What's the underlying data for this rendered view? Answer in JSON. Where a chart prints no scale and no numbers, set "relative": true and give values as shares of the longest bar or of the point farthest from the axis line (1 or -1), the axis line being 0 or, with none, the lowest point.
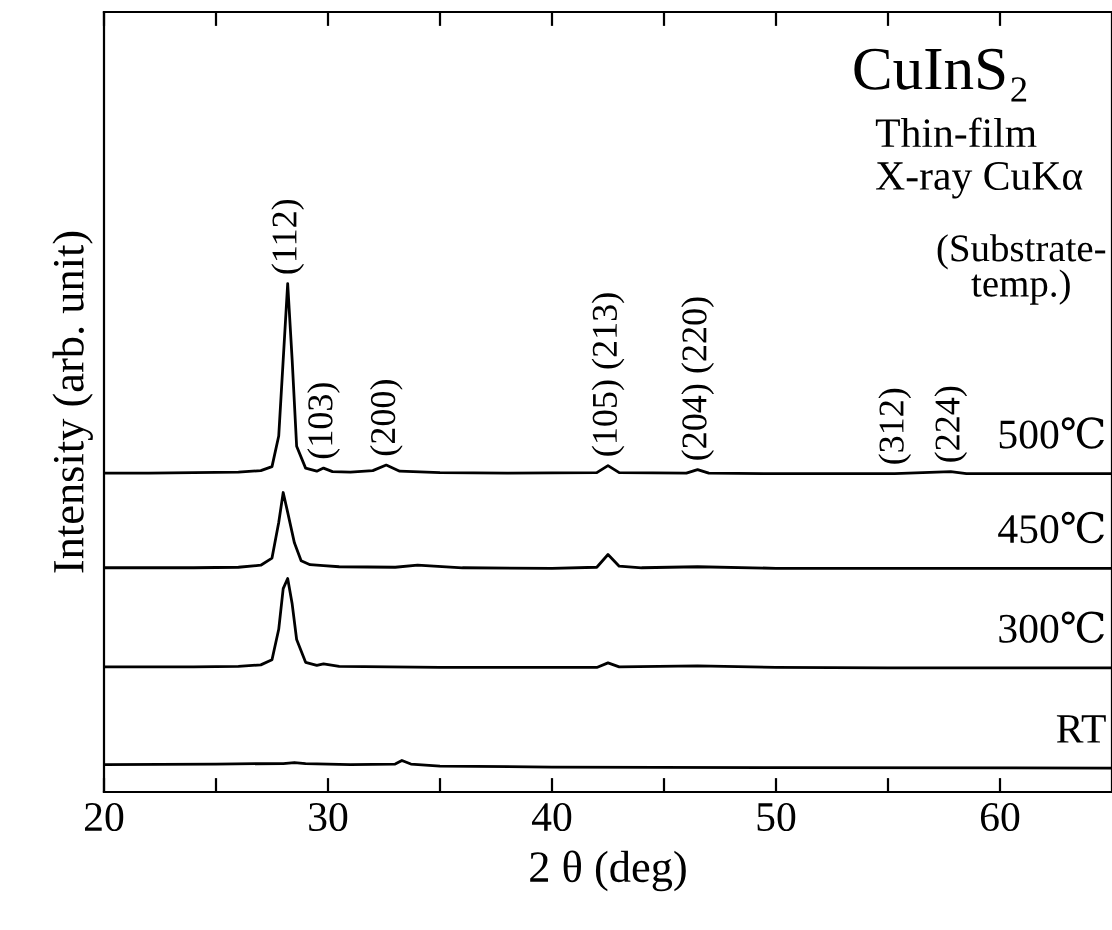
{
  "chart_data": {
    "type": "line",
    "relative": true,
    "xlabel": "2 θ (deg)",
    "ylabel": "Intensity (arb. unit)",
    "xlim": [
      20,
      65
    ],
    "xticks": [
      20,
      {
        "value": 25,
        "label": null
      },
      30,
      {
        "value": 35,
        "label": null
      },
      40,
      {
        "value": 45,
        "label": null
      },
      50,
      {
        "value": 55,
        "label": null
      },
      60
    ],
    "tick_labels": "x",
    "grid": false,
    "legend": false,
    "marker": "none",
    "line_style": "solid",
    "series": [
      {
        "name": "500℃",
        "color": "#000000",
        "x": [
          20,
          22,
          24,
          26,
          27,
          27.5,
          27.8,
          28.0,
          28.2,
          28.4,
          28.6,
          29,
          29.5,
          29.8,
          30.2,
          31,
          32.0,
          32.6,
          33.2,
          35,
          38,
          42,
          42.5,
          43,
          46,
          46.5,
          47,
          50,
          55.3,
          57.8,
          58.5,
          62,
          65
        ],
        "values": [
          0.627,
          0.627,
          0.628,
          0.629,
          0.632,
          0.64,
          0.7,
          0.85,
          1.0,
          0.85,
          0.68,
          0.637,
          0.631,
          0.637,
          0.63,
          0.629,
          0.632,
          0.643,
          0.631,
          0.628,
          0.627,
          0.628,
          0.642,
          0.628,
          0.627,
          0.634,
          0.627,
          0.626,
          0.626,
          0.63,
          0.626,
          0.626,
          0.626
        ]
      },
      {
        "name": "450℃",
        "color": "#000000",
        "x": [
          20,
          24,
          26,
          27,
          27.5,
          27.8,
          28.0,
          28.2,
          28.5,
          28.8,
          29.2,
          29.8,
          30.5,
          33,
          34,
          36,
          40,
          42,
          42.5,
          43,
          44,
          46.5,
          50,
          55,
          62,
          65
        ],
        "values": [
          0.441,
          0.441,
          0.442,
          0.446,
          0.46,
          0.53,
          0.589,
          0.55,
          0.49,
          0.455,
          0.447,
          0.445,
          0.443,
          0.442,
          0.446,
          0.441,
          0.44,
          0.442,
          0.467,
          0.444,
          0.441,
          0.443,
          0.44,
          0.44,
          0.44,
          0.44
        ]
      },
      {
        "name": "300℃",
        "color": "#000000",
        "x": [
          20,
          24,
          26,
          27,
          27.5,
          27.8,
          28.0,
          28.2,
          28.4,
          28.6,
          29,
          29.5,
          29.8,
          30.5,
          35,
          42,
          42.5,
          43,
          46.5,
          50,
          55,
          62,
          65
        ],
        "values": [
          0.246,
          0.246,
          0.247,
          0.25,
          0.26,
          0.32,
          0.4,
          0.42,
          0.37,
          0.3,
          0.255,
          0.249,
          0.252,
          0.247,
          0.245,
          0.245,
          0.254,
          0.246,
          0.248,
          0.245,
          0.244,
          0.244,
          0.244
        ]
      },
      {
        "name": "RT",
        "color": "#000000",
        "x": [
          20,
          25,
          28,
          28.5,
          29,
          31,
          33,
          33.3,
          33.7,
          35,
          40,
          50,
          65
        ],
        "values": [
          0.054,
          0.055,
          0.056,
          0.058,
          0.056,
          0.054,
          0.055,
          0.062,
          0.055,
          0.051,
          0.049,
          0.048,
          0.047
        ]
      }
    ],
    "annotations": [
      {
        "text": "(112)",
        "x": 28.2,
        "y": 1.0
      },
      {
        "text": "(103)",
        "x": 29.8,
        "y": 0.637
      },
      {
        "text": "(200)",
        "x": 32.6,
        "y": 0.643
      },
      {
        "text": "(105) (213)",
        "x": 42.5,
        "y": 0.642
      },
      {
        "text": "(204) (220)",
        "x": 46.5,
        "y": 0.634
      },
      {
        "text": "(312)",
        "x": 55.3,
        "y": 0.626
      },
      {
        "text": "(224)",
        "x": 57.8,
        "y": 0.63
      },
      "CuInS₂",
      "Thin-film",
      "X-ray CuKα",
      "(Substrate-\ntemp.)"
    ]
  }
}
